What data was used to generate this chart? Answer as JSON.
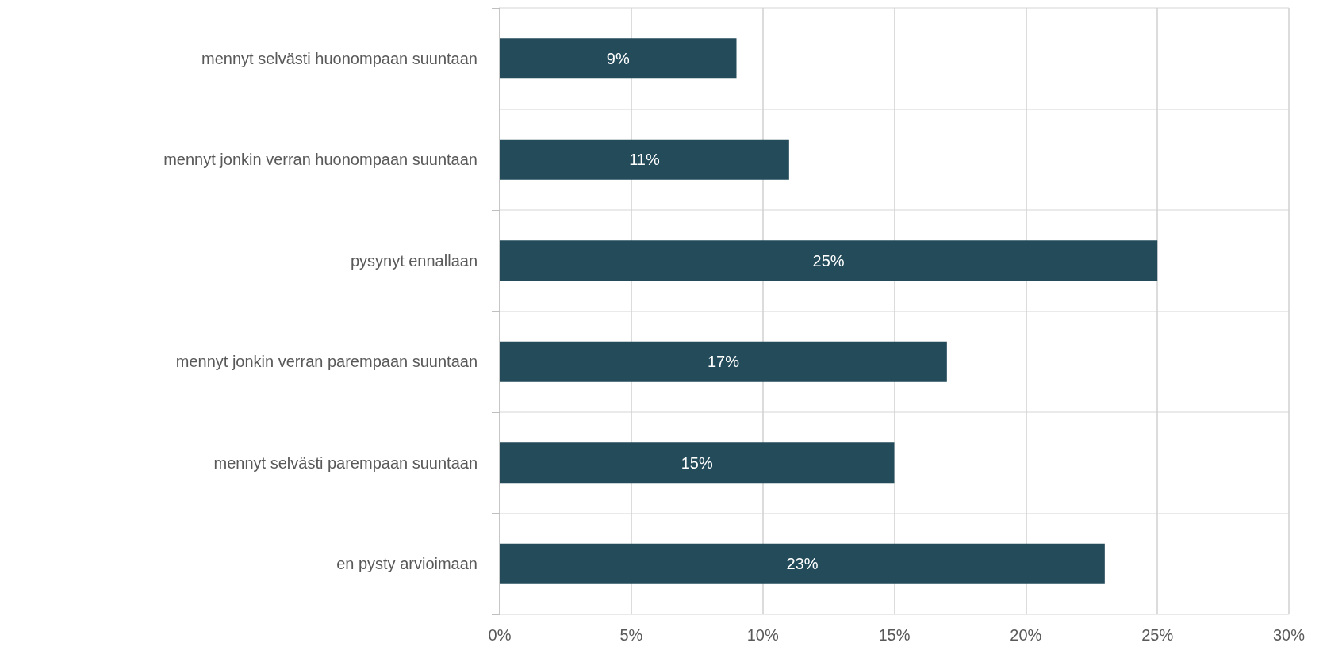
{
  "chart_data": {
    "type": "bar",
    "orientation": "horizontal",
    "categories": [
      "mennyt selvästi huonompaan suuntaan",
      "mennyt jonkin verran huonompaan suuntaan",
      "pysynyt ennallaan",
      "mennyt jonkin verran parempaan suuntaan",
      "mennyt selvästi parempaan suuntaan",
      "en pysty arvioimaan"
    ],
    "values": [
      9,
      11,
      25,
      17,
      15,
      23
    ],
    "value_labels": [
      "9%",
      "11%",
      "25%",
      "17%",
      "15%",
      "23%"
    ],
    "color": "#234b5a",
    "xlim": [
      0,
      30
    ],
    "xticks": [
      {
        "value": 0,
        "label": "0%"
      },
      {
        "value": 5,
        "label": "5%"
      },
      {
        "value": 10,
        "label": "10%"
      },
      {
        "value": 15,
        "label": "15%"
      },
      {
        "value": 20,
        "label": "20%"
      },
      {
        "value": 25,
        "label": "25%"
      },
      {
        "value": 30,
        "label": "30%"
      }
    ],
    "grid": true
  }
}
